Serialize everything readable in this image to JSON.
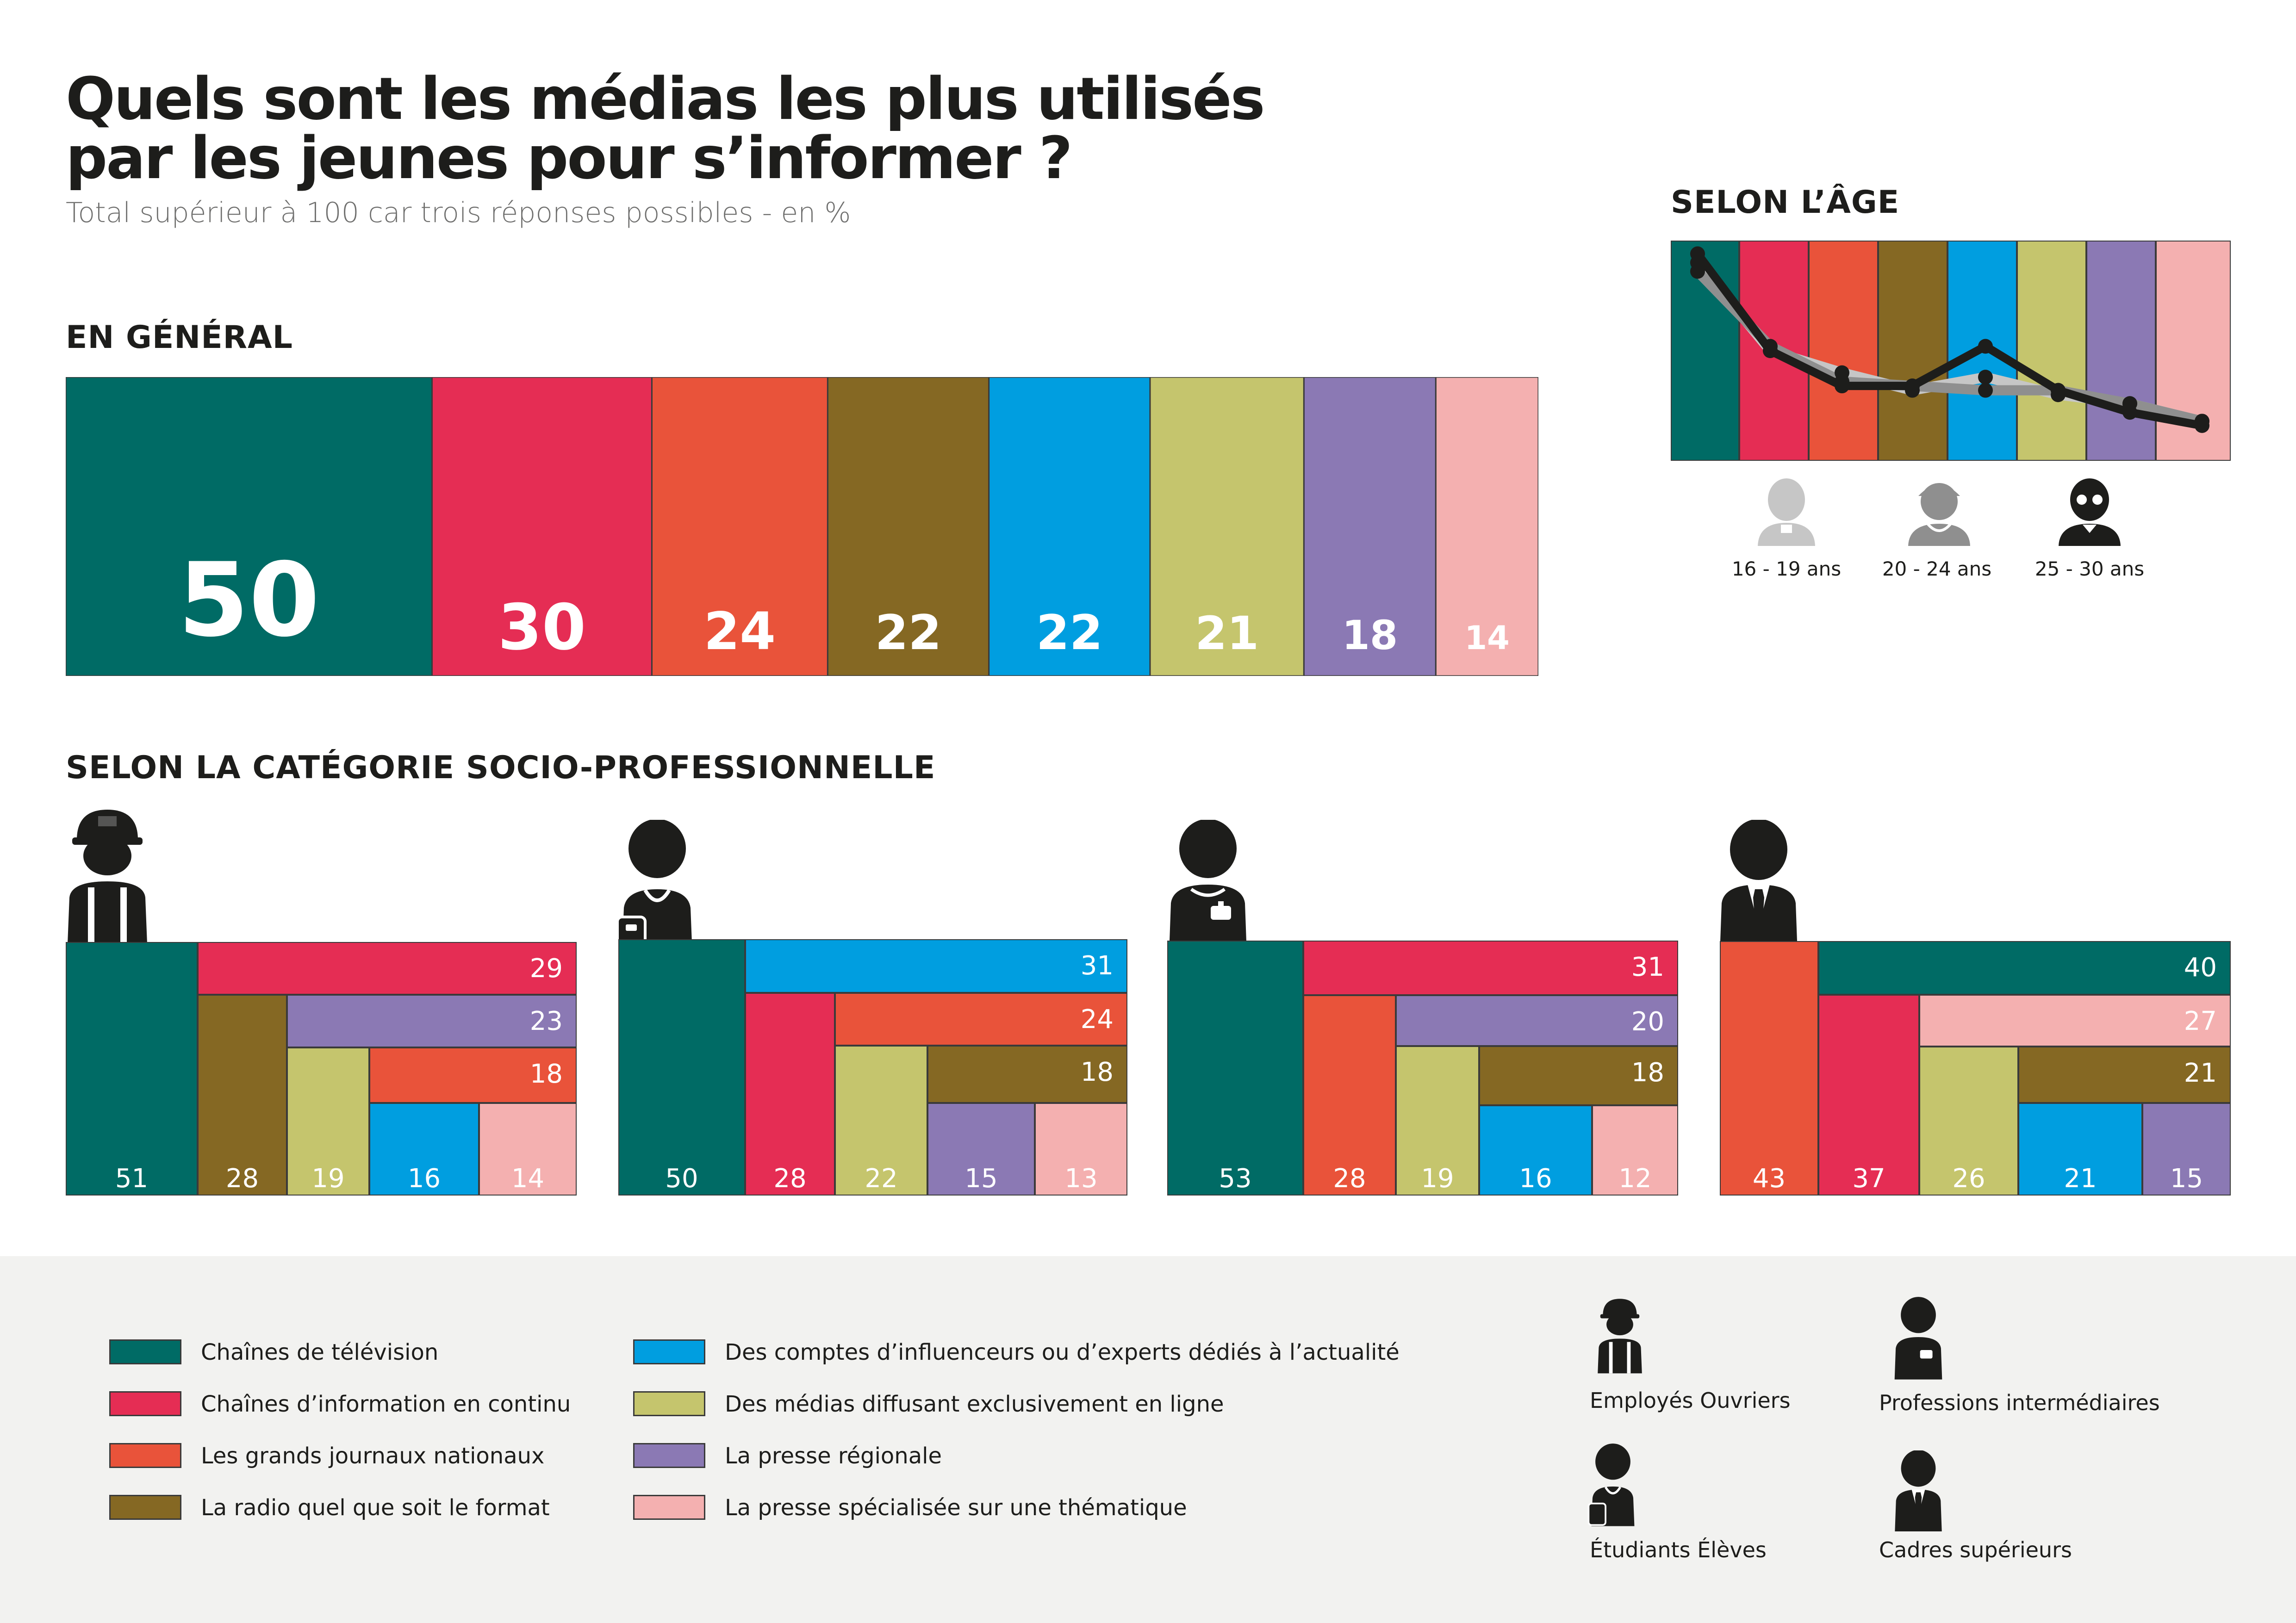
{
  "header": {
    "title_line1": "Quels sont les médias les plus utilisés",
    "title_line2": "par les jeunes pour s’informer ?",
    "subtitle": "Total supérieur à 100 car trois réponses possibles - en %"
  },
  "sections": {
    "general": "EN GÉNÉRAL",
    "age": "SELON L’ÂGE",
    "csp": "SELON LA CATÉGORIE SOCIO-PROFESSIONNELLE"
  },
  "media": [
    {
      "key": "tv",
      "label": "Chaînes de télévision",
      "color": "#006b65"
    },
    {
      "key": "info",
      "label": "Chaînes d’information en continu",
      "color": "#e52d54"
    },
    {
      "key": "journaux",
      "label": "Les grands journaux nationaux",
      "color": "#e9533a"
    },
    {
      "key": "radio",
      "label": "La radio quel que soit le format",
      "color": "#856823"
    },
    {
      "key": "influ",
      "label": "Des comptes d’influenceurs ou d’experts dédiés à l’actualité",
      "color": "#009ee0"
    },
    {
      "key": "enligne",
      "label": "Des médias diffusant exclusivement en ligne",
      "color": "#c5c56d"
    },
    {
      "key": "regionale",
      "label": "La presse régionale",
      "color": "#8b79b4"
    },
    {
      "key": "specialisee",
      "label": "La presse spécialisée sur une thématique",
      "color": "#f4b0b0"
    }
  ],
  "chart_data": [
    {
      "type": "bar",
      "title": "EN GÉNÉRAL",
      "categories": [
        "Chaînes de télévision",
        "Chaînes d’information en continu",
        "Les grands journaux nationaux",
        "La radio quel que soit le format",
        "Des comptes d’influenceurs ou d’experts dédiés à l’actualité",
        "Des médias diffusant exclusivement en ligne",
        "La presse régionale",
        "La presse spécialisée sur une thématique"
      ],
      "values": [
        50,
        30,
        24,
        22,
        22,
        21,
        18,
        14
      ],
      "labels": [
        "50",
        "30",
        "24",
        "22",
        "22",
        "21",
        "18",
        "14"
      ]
    },
    {
      "type": "line",
      "title": "SELON L’ÂGE",
      "categories": [
        "Chaînes de télévision",
        "Chaînes d’information en continu",
        "Les grands journaux nationaux",
        "La radio quel que soit le format",
        "Des comptes d’influenceurs ou d’experts dédiés à l’actualité",
        "Des médias diffusant exclusivement en ligne",
        "La presse régionale",
        "La presse spécialisée sur une thématique"
      ],
      "series": [
        {
          "name": "16 - 19 ans",
          "color": "#c6c6c6",
          "values": [
            50,
            30,
            25,
            21,
            24,
            20,
            18,
            14
          ]
        },
        {
          "name": "20 - 24 ans",
          "color": "#8f8f8f",
          "values": [
            48,
            31,
            23,
            22,
            21,
            21,
            18,
            14
          ]
        },
        {
          "name": "25 - 30 ans",
          "color": "#1d1d1b",
          "values": [
            52,
            30,
            22,
            22,
            31,
            21,
            16,
            13
          ]
        }
      ]
    },
    {
      "type": "treemap",
      "name": "Employés Ouvriers",
      "items": [
        {
          "media": "tv",
          "value": 51,
          "label": "51"
        },
        {
          "media": "info",
          "value": 29,
          "label": "29"
        },
        {
          "media": "radio",
          "value": 28,
          "label": "28"
        },
        {
          "media": "regionale",
          "value": 23,
          "label": "23"
        },
        {
          "media": "enligne",
          "value": 19,
          "label": "19"
        },
        {
          "media": "journaux",
          "value": 18,
          "label": "18"
        },
        {
          "media": "influ",
          "value": 16,
          "label": "16"
        },
        {
          "media": "specialisee",
          "value": 14,
          "label": "14"
        }
      ]
    },
    {
      "type": "treemap",
      "name": "Étudiants Élèves",
      "items": [
        {
          "media": "tv",
          "value": 50,
          "label": "50"
        },
        {
          "media": "influ",
          "value": 31,
          "label": "31"
        },
        {
          "media": "info",
          "value": 28,
          "label": "28"
        },
        {
          "media": "journaux",
          "value": 24,
          "label": "24"
        },
        {
          "media": "enligne",
          "value": 22,
          "label": "22"
        },
        {
          "media": "radio",
          "value": 18,
          "label": "18"
        },
        {
          "media": "regionale",
          "value": 15,
          "label": "15"
        },
        {
          "media": "specialisee",
          "value": 13,
          "label": "13"
        }
      ]
    },
    {
      "type": "treemap",
      "name": "Professions intermédiaires",
      "items": [
        {
          "media": "tv",
          "value": 53,
          "label": "53"
        },
        {
          "media": "info",
          "value": 31,
          "label": "31"
        },
        {
          "media": "journaux",
          "value": 28,
          "label": "28"
        },
        {
          "media": "regionale",
          "value": 20,
          "label": "20"
        },
        {
          "media": "enligne",
          "value": 19,
          "label": "19"
        },
        {
          "media": "radio",
          "value": 18,
          "label": "18"
        },
        {
          "media": "influ",
          "value": 16,
          "label": "16"
        },
        {
          "media": "specialisee",
          "value": 12,
          "label": "12"
        }
      ]
    },
    {
      "type": "treemap",
      "name": "Cadres supérieurs",
      "items": [
        {
          "media": "journaux",
          "value": 43,
          "label": "43"
        },
        {
          "media": "tv",
          "value": 40,
          "label": "40"
        },
        {
          "media": "info",
          "value": 37,
          "label": "37"
        },
        {
          "media": "specialisee",
          "value": 27,
          "label": "27"
        },
        {
          "media": "enligne",
          "value": 26,
          "label": "26"
        },
        {
          "media": "radio",
          "value": 21,
          "label": "21"
        },
        {
          "media": "influ",
          "value": 21,
          "label": "21"
        },
        {
          "media": "regionale",
          "value": 15,
          "label": "15"
        }
      ]
    }
  ],
  "age_legend": [
    "16 - 19 ans",
    "20 - 24 ans",
    "25 - 30 ans"
  ],
  "csp_legend": [
    "Employés Ouvriers",
    "Professions intermédiaires",
    "Étudiants Élèves",
    "Cadres supérieurs"
  ]
}
